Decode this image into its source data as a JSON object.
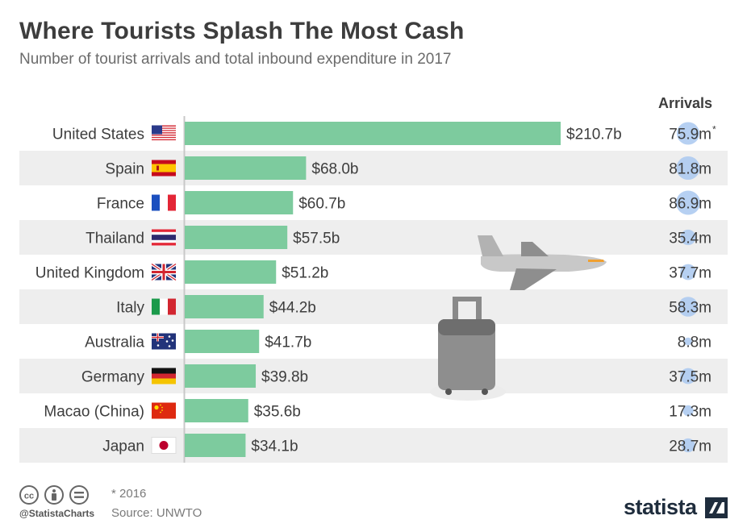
{
  "title": "Where Tourists Splash The Most Cash",
  "subtitle": "Number of tourist arrivals and total inbound expenditure in 2017",
  "arrivals_header": "Arrivals",
  "footnote": "* 2016",
  "source": "Source: UNWTO",
  "handle": "@StatistaCharts",
  "brand": "statista",
  "colors": {
    "bar": "#7dcb9e",
    "row_alt": "#eeeeee",
    "bubble": "#a9c8f0",
    "text": "#3d3d3d"
  },
  "icons": [
    "plane-icon",
    "suitcase-icon",
    "cc-icon",
    "by-icon",
    "nd-icon",
    "statista-logo-icon"
  ],
  "chart_data": {
    "type": "bar",
    "orientation": "horizontal",
    "categories": [
      "United States",
      "Spain",
      "France",
      "Thailand",
      "United Kingdom",
      "Italy",
      "Australia",
      "Germany",
      "Macao (China)",
      "Japan"
    ],
    "values": [
      210.7,
      68.0,
      60.7,
      57.5,
      51.2,
      44.2,
      41.7,
      39.8,
      35.6,
      34.1
    ],
    "value_labels": [
      "$210.7b",
      "$68.0b",
      "$60.7b",
      "$57.5b",
      "$51.2b",
      "$44.2b",
      "$41.7b",
      "$39.8b",
      "$35.6b",
      "$34.1b"
    ],
    "arrivals": [
      75.9,
      81.8,
      86.9,
      35.4,
      37.7,
      58.3,
      8.8,
      37.5,
      17.3,
      28.7
    ],
    "arrival_labels": [
      "75.9m*",
      "81.8m",
      "86.9m",
      "35.4m",
      "37.7m",
      "58.3m",
      "8.8m",
      "37.5m",
      "17.3m",
      "28.7m"
    ],
    "flags": [
      "us",
      "es",
      "fr",
      "th",
      "gb",
      "it",
      "au",
      "de",
      "cn",
      "jp"
    ]
  }
}
